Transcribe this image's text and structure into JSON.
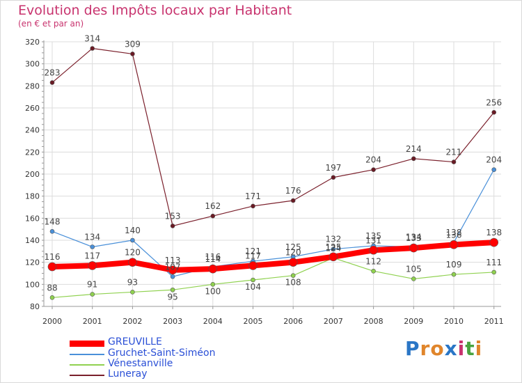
{
  "title": "Evolution des Impôts locaux par Habitant",
  "subtitle": "(en € et par an)",
  "logo": {
    "letters": [
      "P",
      "r",
      "o",
      "x",
      "i",
      "t",
      "i"
    ],
    "colors": [
      "#2a76c6",
      "#e0852b",
      "#e0852b",
      "#2a76c6",
      "#c8336e",
      "#4aa33f",
      "#e0852b"
    ]
  },
  "chart_data": {
    "type": "line",
    "title": "Evolution des Impôts locaux par Habitant",
    "subtitle": "(en € et par an)",
    "categories": [
      "2000",
      "2001",
      "2002",
      "2003",
      "2004",
      "2005",
      "2006",
      "2007",
      "2008",
      "2009",
      "2010",
      "2011"
    ],
    "ylim": [
      80,
      320
    ],
    "yticks": [
      80,
      100,
      120,
      140,
      160,
      180,
      200,
      220,
      240,
      260,
      280,
      300,
      320
    ],
    "grid": true,
    "legend_position": "bottom-left",
    "series": [
      {
        "name": "GREUVILLE",
        "color": "#ff0000",
        "values": [
          116,
          117,
          120,
          113,
          114,
          117,
          120,
          125,
          131,
          133,
          136,
          138
        ],
        "labels": [
          "116",
          "117",
          "120",
          "113",
          "114",
          "117",
          "120",
          "125",
          "131",
          "133",
          "136",
          "138"
        ]
      },
      {
        "name": "Gruchet-Saint-Siméon",
        "color": "#4a90d9",
        "values": [
          148,
          134,
          140,
          107,
          116,
          121,
          125,
          132,
          135,
          134,
          138,
          204
        ],
        "labels": [
          "148",
          "134",
          "140",
          "107",
          "116",
          "121",
          "125",
          "132",
          "135",
          "134",
          "138",
          "204"
        ]
      },
      {
        "name": "Vénestanville",
        "color": "#8fd14f",
        "values": [
          88,
          91,
          93,
          95,
          100,
          104,
          108,
          124,
          112,
          105,
          109,
          111
        ],
        "labels": [
          "88",
          "91",
          "93",
          "95",
          "100",
          "104",
          "108",
          "124",
          "112",
          "105",
          "109",
          "111"
        ]
      },
      {
        "name": "Luneray",
        "color": "#7a1f2b",
        "values": [
          283,
          314,
          309,
          153,
          162,
          171,
          176,
          197,
          204,
          214,
          211,
          256
        ],
        "labels": [
          "283",
          "314",
          "309",
          "153",
          "162",
          "171",
          "176",
          "197",
          "204",
          "214",
          "211",
          "256"
        ]
      }
    ]
  }
}
